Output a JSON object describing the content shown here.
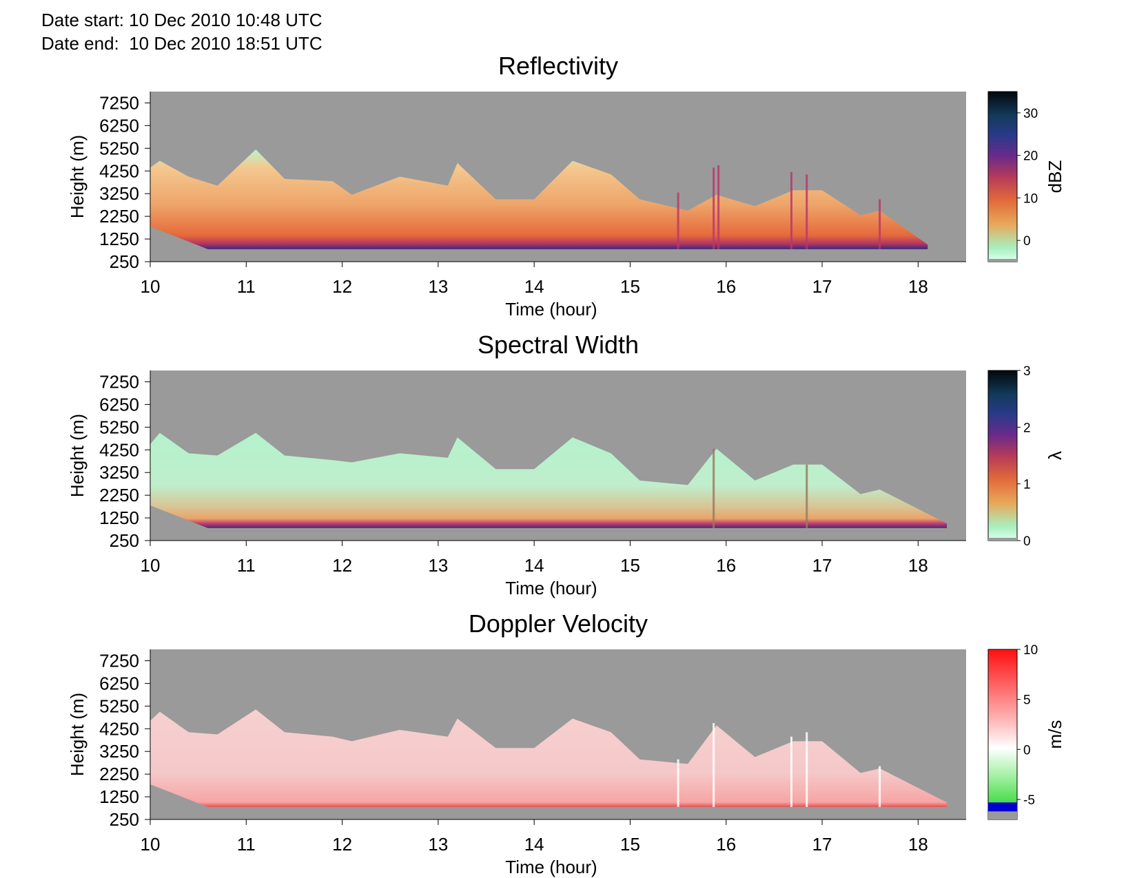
{
  "header": {
    "date_start_label": "Date start:",
    "date_start_value": "10 Dec 2010 10:48 UTC",
    "date_end_label": "Date end:",
    "date_end_value": "10 Dec 2010 18:51 UTC"
  },
  "colors": {
    "background_nodata": "#9a9a9a",
    "doppler_negative_band": "#0000cc"
  },
  "chart_data": [
    {
      "type": "heatmap",
      "title": "Reflectivity",
      "xlabel": "Time (hour)",
      "ylabel": "Height (m)",
      "x_ticks": [
        10,
        11,
        12,
        13,
        14,
        15,
        16,
        17,
        18
      ],
      "y_ticks": [
        250,
        1250,
        2250,
        3250,
        4250,
        5250,
        6250,
        7250
      ],
      "xlim": [
        10,
        18.5
      ],
      "ylim": [
        250,
        7750
      ],
      "colorbar": {
        "label": "dBZ",
        "ticks": [
          0,
          10,
          20,
          30
        ],
        "range": [
          -5,
          35
        ]
      },
      "echo_top_m": [
        [
          10.0,
          4400
        ],
        [
          10.1,
          4700
        ],
        [
          10.4,
          4000
        ],
        [
          10.7,
          3600
        ],
        [
          11.1,
          5200
        ],
        [
          11.4,
          3900
        ],
        [
          11.9,
          3800
        ],
        [
          12.1,
          3200
        ],
        [
          12.6,
          4000
        ],
        [
          13.1,
          3600
        ],
        [
          13.2,
          4600
        ],
        [
          13.6,
          3000
        ],
        [
          14.0,
          3000
        ],
        [
          14.4,
          4700
        ],
        [
          14.8,
          4100
        ],
        [
          15.1,
          3000
        ],
        [
          15.6,
          2500
        ],
        [
          15.9,
          3200
        ],
        [
          16.3,
          2700
        ],
        [
          16.7,
          3400
        ],
        [
          17.0,
          3400
        ],
        [
          17.4,
          2300
        ],
        [
          17.6,
          2500
        ],
        [
          18.1,
          1000
        ]
      ],
      "columns": [
        {
          "t": 15.5,
          "top_m": 3300
        },
        {
          "t": 15.87,
          "top_m": 4400
        },
        {
          "t": 15.92,
          "top_m": 4500
        },
        {
          "t": 16.68,
          "top_m": 4200
        },
        {
          "t": 16.84,
          "top_m": 4100
        },
        {
          "t": 17.6,
          "top_m": 3000
        }
      ]
    },
    {
      "type": "heatmap",
      "title": "Spectral Width",
      "xlabel": "Time (hour)",
      "ylabel": "Height (m)",
      "x_ticks": [
        10,
        11,
        12,
        13,
        14,
        15,
        16,
        17,
        18
      ],
      "y_ticks": [
        250,
        1250,
        2250,
        3250,
        4250,
        5250,
        6250,
        7250
      ],
      "xlim": [
        10,
        18.5
      ],
      "ylim": [
        250,
        7750
      ],
      "colorbar": {
        "label": "λ",
        "ticks": [
          0,
          1,
          2,
          3
        ],
        "range": [
          0,
          3
        ]
      },
      "echo_top_m": [
        [
          10.0,
          4500
        ],
        [
          10.1,
          5000
        ],
        [
          10.4,
          4100
        ],
        [
          10.7,
          4000
        ],
        [
          11.1,
          5000
        ],
        [
          11.4,
          4000
        ],
        [
          11.9,
          3800
        ],
        [
          12.1,
          3700
        ],
        [
          12.6,
          4100
        ],
        [
          13.1,
          3900
        ],
        [
          13.2,
          4800
        ],
        [
          13.6,
          3400
        ],
        [
          14.0,
          3400
        ],
        [
          14.4,
          4800
        ],
        [
          14.8,
          4100
        ],
        [
          15.1,
          2900
        ],
        [
          15.6,
          2700
        ],
        [
          15.9,
          4300
        ],
        [
          16.3,
          2900
        ],
        [
          16.7,
          3600
        ],
        [
          17.0,
          3600
        ],
        [
          17.4,
          2300
        ],
        [
          17.6,
          2500
        ],
        [
          18.3,
          1000
        ]
      ],
      "columns": [
        {
          "t": 15.87,
          "top_m": 4300
        },
        {
          "t": 16.84,
          "top_m": 3600
        }
      ]
    },
    {
      "type": "heatmap",
      "title": "Doppler Velocity",
      "xlabel": "Time (hour)",
      "ylabel": "Height (m)",
      "x_ticks": [
        10,
        11,
        12,
        13,
        14,
        15,
        16,
        17,
        18
      ],
      "y_ticks": [
        250,
        1250,
        2250,
        3250,
        4250,
        5250,
        6250,
        7250
      ],
      "xlim": [
        10,
        18.5
      ],
      "ylim": [
        250,
        7750
      ],
      "colorbar": {
        "label": "m/s",
        "ticks": [
          -5,
          0,
          5,
          10
        ],
        "range": [
          -7,
          10
        ]
      },
      "echo_top_m": [
        [
          10.0,
          4600
        ],
        [
          10.1,
          5000
        ],
        [
          10.4,
          4100
        ],
        [
          10.7,
          4000
        ],
        [
          11.1,
          5100
        ],
        [
          11.4,
          4100
        ],
        [
          11.9,
          3900
        ],
        [
          12.1,
          3700
        ],
        [
          12.6,
          4200
        ],
        [
          13.1,
          3900
        ],
        [
          13.2,
          4700
        ],
        [
          13.6,
          3400
        ],
        [
          14.0,
          3400
        ],
        [
          14.4,
          4700
        ],
        [
          14.8,
          4100
        ],
        [
          15.1,
          2900
        ],
        [
          15.6,
          2700
        ],
        [
          15.9,
          4400
        ],
        [
          16.3,
          3000
        ],
        [
          16.7,
          3700
        ],
        [
          17.0,
          3700
        ],
        [
          17.4,
          2300
        ],
        [
          17.6,
          2500
        ],
        [
          18.3,
          1000
        ]
      ],
      "columns": [
        {
          "t": 15.5,
          "top_m": 2900
        },
        {
          "t": 15.87,
          "top_m": 4500
        },
        {
          "t": 16.68,
          "top_m": 3900
        },
        {
          "t": 16.84,
          "top_m": 4100
        },
        {
          "t": 17.6,
          "top_m": 2600
        }
      ]
    }
  ]
}
